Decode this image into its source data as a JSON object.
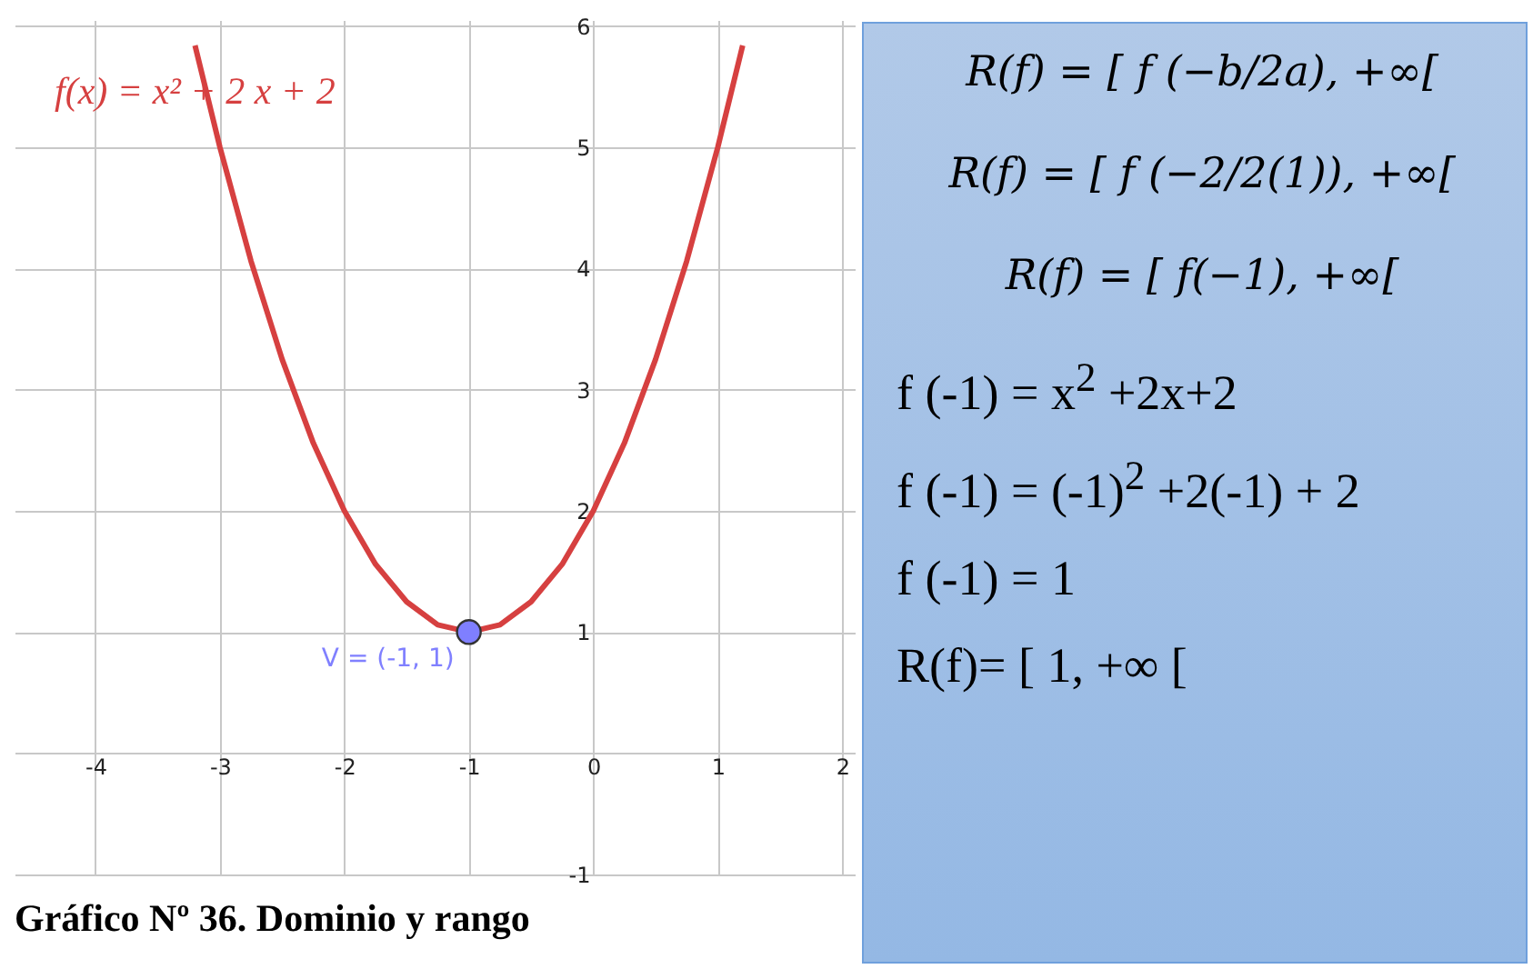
{
  "chart_data": [
    {
      "type": "line",
      "title": "Gráfico Nº 36. Dominio y rango",
      "xlim": [
        -4.65,
        2.1
      ],
      "ylim": [
        -1,
        6.05
      ],
      "xticks": [
        -4,
        -3,
        -2,
        -1,
        0,
        1,
        2
      ],
      "yticks": [
        -1,
        {
          "value": 0,
          "label": null
        },
        1,
        2,
        3,
        4,
        5,
        6
      ],
      "grid": true,
      "series": [
        {
          "name": "f(x) = x² + 2 x + 2",
          "type": "line",
          "color": "#d64040",
          "marker": "none",
          "x": [
            -3.2,
            -3,
            -2.75,
            -2.5,
            -2.25,
            -2,
            -1.75,
            -1.5,
            -1.25,
            -1,
            -0.75,
            -0.5,
            -0.25,
            0,
            0.25,
            0.5,
            0.75,
            1,
            1.2
          ],
          "values": [
            5.84,
            5,
            4.06,
            3.25,
            2.56,
            2,
            1.56,
            1.25,
            1.06,
            1,
            1.06,
            1.25,
            1.56,
            2,
            2.56,
            3.25,
            4.06,
            5,
            5.84
          ]
        },
        {
          "type": "scatter",
          "color": "#7f7fff",
          "marker": "circle",
          "x": [
            -1
          ],
          "values": [
            1
          ]
        }
      ],
      "annotations": [
        {
          "text": "V = (-1, 1)",
          "x": -1,
          "y": 1
        }
      ]
    },
    {
      "type": "other",
      "annotations": [
        "R(f) = [ f (−b/2a), +∞[",
        "R(f) = [ f (−2/2(1)), +∞[",
        "R(f) = [ f(−1), +∞[",
        "f (-1) = x$^{2}$ +2x+2",
        "f (-1) = (-1)$^{2}$ +2(-1) + 2",
        "f (-1) = 1",
        "R(f)= [ 1, +∞ ["
      ]
    }
  ]
}
